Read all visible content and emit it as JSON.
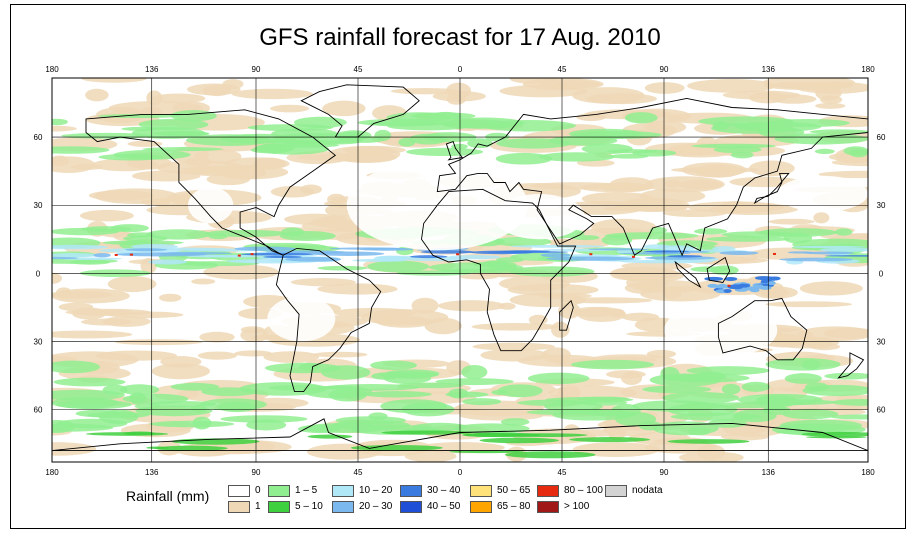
{
  "title": "GFS rainfall forecast for 17 Aug. 2010",
  "lon_ticks": [
    "180",
    "136",
    "90",
    "45",
    "0",
    "45",
    "90",
    "136",
    "180"
  ],
  "lat_ticks": [
    "60",
    "30",
    "0",
    "30",
    "60"
  ],
  "legend": {
    "title": "Rainfall (mm)",
    "items": [
      {
        "label": "0",
        "color": "#ffffff"
      },
      {
        "label": "1",
        "color": "#efd8b6"
      },
      {
        "label": "1 – 5",
        "color": "#90ee90"
      },
      {
        "label": "5 – 10",
        "color": "#3fd03f"
      },
      {
        "label": "10 – 20",
        "color": "#b0e8f8"
      },
      {
        "label": "20 – 30",
        "color": "#7ab8ee"
      },
      {
        "label": "30 – 40",
        "color": "#3a7be0"
      },
      {
        "label": "40 – 50",
        "color": "#1f4fd6"
      },
      {
        "label": "50 – 65",
        "color": "#ffe27a"
      },
      {
        "label": "65 – 80",
        "color": "#ffa500"
      },
      {
        "label": "80 – 100",
        "color": "#e52a10"
      },
      {
        "label": "> 100",
        "color": "#a01818"
      },
      {
        "label": "nodata",
        "color": "#d3d3d3"
      }
    ]
  }
}
